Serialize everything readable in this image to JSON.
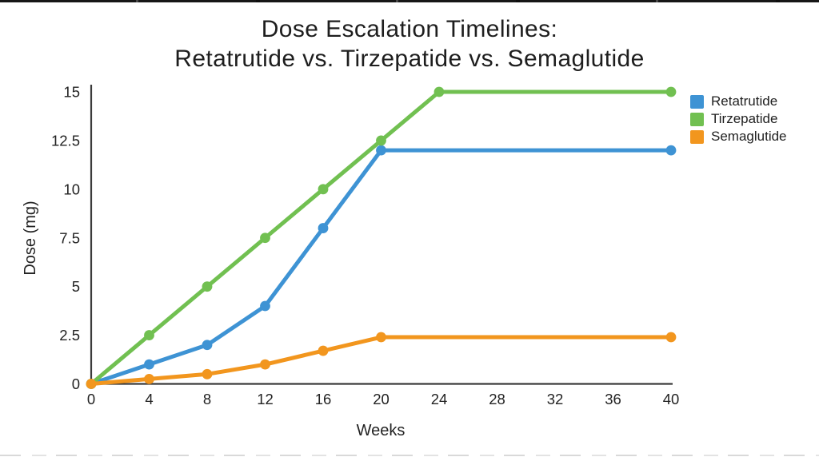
{
  "title": {
    "line1": "Dose Escalation Timelines:",
    "line2": "Retatrutide vs. Tirzepatide vs. Semaglutide"
  },
  "chart_data": {
    "type": "line",
    "title": "Dose Escalation Timelines: Retatrutide vs. Tirzepatide vs. Semaglutide",
    "xlabel": "Weeks",
    "ylabel": "Dose (mg)",
    "xlim": [
      0,
      40
    ],
    "ylim": [
      0,
      15
    ],
    "x_ticks": [
      0,
      4,
      8,
      12,
      16,
      20,
      24,
      28,
      32,
      36,
      40
    ],
    "y_ticks": [
      0,
      2.5,
      5,
      7.5,
      10,
      12.5,
      15
    ],
    "grid": false,
    "legend_position": "top-right",
    "series": [
      {
        "name": "Retatrutide",
        "color": "#3e93d4",
        "x": [
          0,
          4,
          8,
          12,
          16,
          20,
          40
        ],
        "y": [
          0,
          1,
          2,
          4,
          8,
          12,
          12
        ]
      },
      {
        "name": "Tirzepatide",
        "color": "#71c051",
        "x": [
          0,
          4,
          8,
          12,
          16,
          20,
          24,
          40
        ],
        "y": [
          0,
          2.5,
          5,
          7.5,
          10,
          12.5,
          15,
          15
        ]
      },
      {
        "name": "Semaglutide",
        "color": "#f2961e",
        "x": [
          0,
          4,
          8,
          12,
          16,
          20,
          40
        ],
        "y": [
          0,
          0.25,
          0.5,
          1,
          1.7,
          2.4,
          2.4
        ]
      }
    ]
  },
  "style": {
    "axis_color": "#3b3b3b",
    "tick_text_color": "#232323",
    "title_color": "#1e1e1e"
  }
}
